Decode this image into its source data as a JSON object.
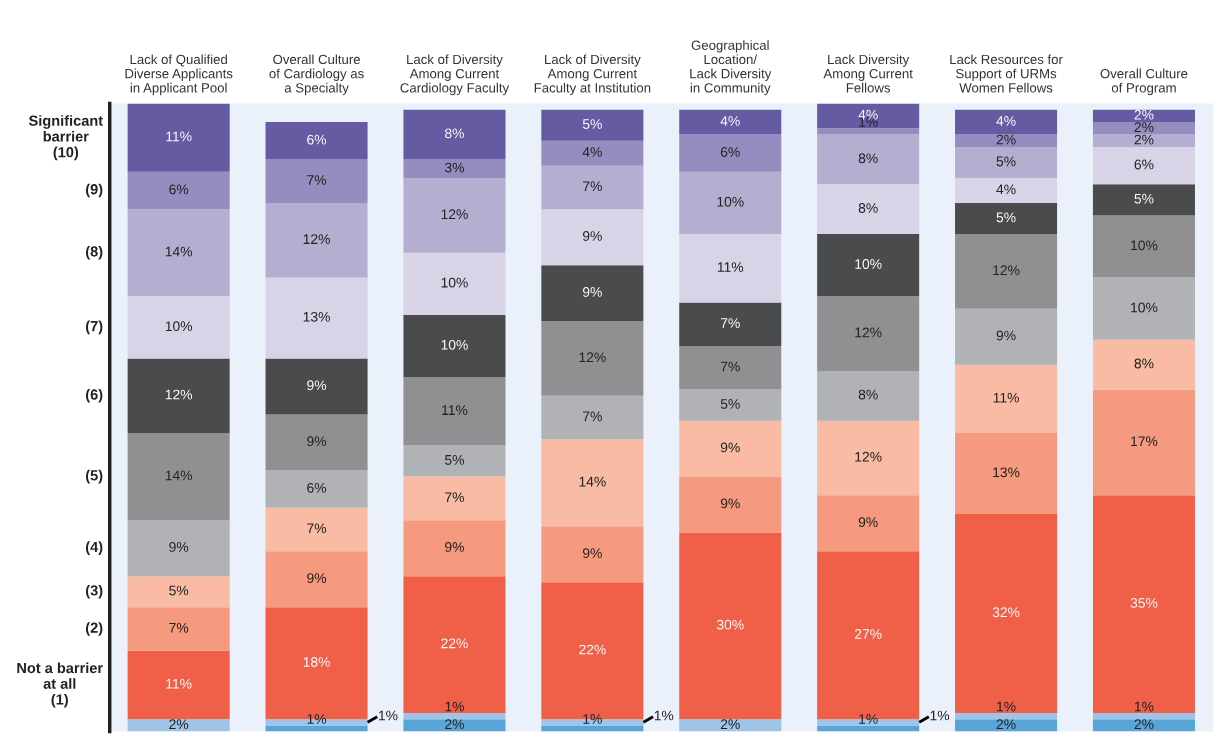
{
  "chart_data": {
    "type": "bar",
    "stacked": true,
    "categories": [
      "Lack of Qualified\nDiverse Applicants\nin Applicant Pool",
      "Overall Culture\nof Cardiology as\na Specialty",
      "Lack of Diversity\nAmong Current\nCardiology Faculty",
      "Lack of Diversity\nAmong Current\nFaculty at Institution",
      "Geographical\nLocation/\nLack Diversity\nin Community",
      "Lack Diversity\nAmong Current\nFellows",
      "Lack Resources for\nSupport of URMs\nWomen Fellows",
      "Overall Culture\nof Program"
    ],
    "series": [
      {
        "color": "#5aa5d8",
        "values": [
          null,
          1,
          2,
          1,
          null,
          1,
          2,
          2
        ],
        "value_labels": [
          null,
          "1%",
          "2%",
          "1%",
          null,
          "1%",
          "2%",
          "2%"
        ]
      },
      {
        "color": "#a0c4e8",
        "values": [
          2,
          1,
          1,
          1,
          2,
          1,
          1,
          1
        ],
        "value_labels": [
          "2%",
          "1%",
          "1%",
          "1%",
          "2%",
          "1%",
          "1%",
          "1%"
        ]
      },
      {
        "name": "Not a barrier\nat all\n(1)",
        "color": "#f05f48",
        "values": [
          11,
          18,
          22,
          22,
          30,
          27,
          32,
          35
        ],
        "value_labels": [
          "11%",
          "18%",
          "22%",
          "22%",
          "30%",
          "27%",
          "32%",
          "35%"
        ]
      },
      {
        "name": "(2)",
        "color": "#f59a7e",
        "values": [
          7,
          9,
          9,
          9,
          9,
          9,
          13,
          17
        ],
        "value_labels": [
          "7%",
          "9%",
          "9%",
          "9%",
          "9%",
          "9%",
          "13%",
          "17%"
        ]
      },
      {
        "name": "(3)",
        "color": "#f9bba3",
        "values": [
          5,
          7,
          7,
          14,
          9,
          12,
          11,
          8
        ],
        "value_labels": [
          "5%",
          "7%",
          "7%",
          "14%",
          "9%",
          "12%",
          "11%",
          "8%"
        ]
      },
      {
        "name": "(4)",
        "color": "#b1b2b5",
        "values": [
          9,
          6,
          5,
          7,
          5,
          8,
          9,
          10
        ],
        "value_labels": [
          "9%",
          "6%",
          "5%",
          "7%",
          "5%",
          "8%",
          "9%",
          "10%"
        ]
      },
      {
        "name": "(5)",
        "color": "#909092",
        "values": [
          14,
          9,
          11,
          12,
          7,
          12,
          12,
          10
        ],
        "value_labels": [
          "14%",
          "9%",
          "11%",
          "12%",
          "7%",
          "12%",
          "12%",
          "10%"
        ]
      },
      {
        "name": "(6)",
        "color": "#4a4b4d",
        "values": [
          12,
          9,
          10,
          9,
          7,
          10,
          5,
          5
        ],
        "value_labels": [
          "12%",
          "9%",
          "10%",
          "9%",
          "7%",
          "10%",
          "5%",
          "5%"
        ]
      },
      {
        "name": "(7)",
        "color": "#d8d3e7",
        "values": [
          10,
          13,
          10,
          9,
          11,
          8,
          4,
          6
        ],
        "value_labels": [
          "10%",
          "13%",
          "10%",
          "9%",
          "11%",
          "8%",
          "4%",
          "6%"
        ]
      },
      {
        "name": "(8)",
        "color": "#b4aed1",
        "values": [
          14,
          12,
          12,
          7,
          10,
          8,
          5,
          2
        ],
        "value_labels": [
          "14%",
          "12%",
          "12%",
          "7%",
          "10%",
          "8%",
          "5%",
          "2%"
        ]
      },
      {
        "name": "(9)",
        "color": "#958cc0",
        "values": [
          6,
          7,
          3,
          4,
          6,
          1,
          2,
          2
        ],
        "value_labels": [
          "6%",
          "7%",
          "3%",
          "4%",
          "6%",
          "1%",
          "2%",
          "2%"
        ]
      },
      {
        "name": "Significant\nbarrier\n(10)",
        "color": "#655ba2",
        "values": [
          11,
          6,
          8,
          5,
          4,
          4,
          4,
          2
        ],
        "value_labels": [
          "11%",
          "6%",
          "8%",
          "5%",
          "4%",
          "4%",
          "4%",
          "2%"
        ]
      }
    ]
  }
}
